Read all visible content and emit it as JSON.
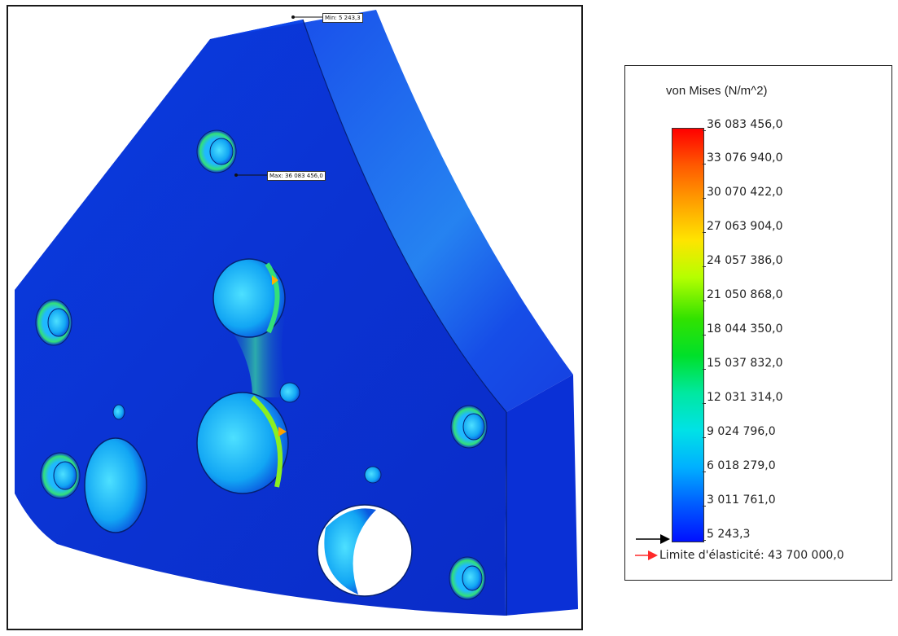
{
  "viewport": {
    "min_label": "Min: 5 243,3",
    "max_label": "Max: 36 083 456,0"
  },
  "legend": {
    "title": "von Mises (N/m^2)",
    "ticks": [
      "36 083 456,0",
      "33 076 940,0",
      "30 070 422,0",
      "27 063 904,0",
      "24 057 386,0",
      "21 050 868,0",
      "18 044 350,0",
      "15 037 832,0",
      "12 031 314,0",
      "9 024 796,0",
      "6 018 279,0",
      "3 011 761,0",
      "5 243,3"
    ],
    "yield_label": "Limite d'élasticité: 43 700 000,0"
  },
  "colors": {
    "min_marker": "#000000",
    "yield_marker": "#ff2a2a",
    "part_base": "#0b2fd6"
  }
}
